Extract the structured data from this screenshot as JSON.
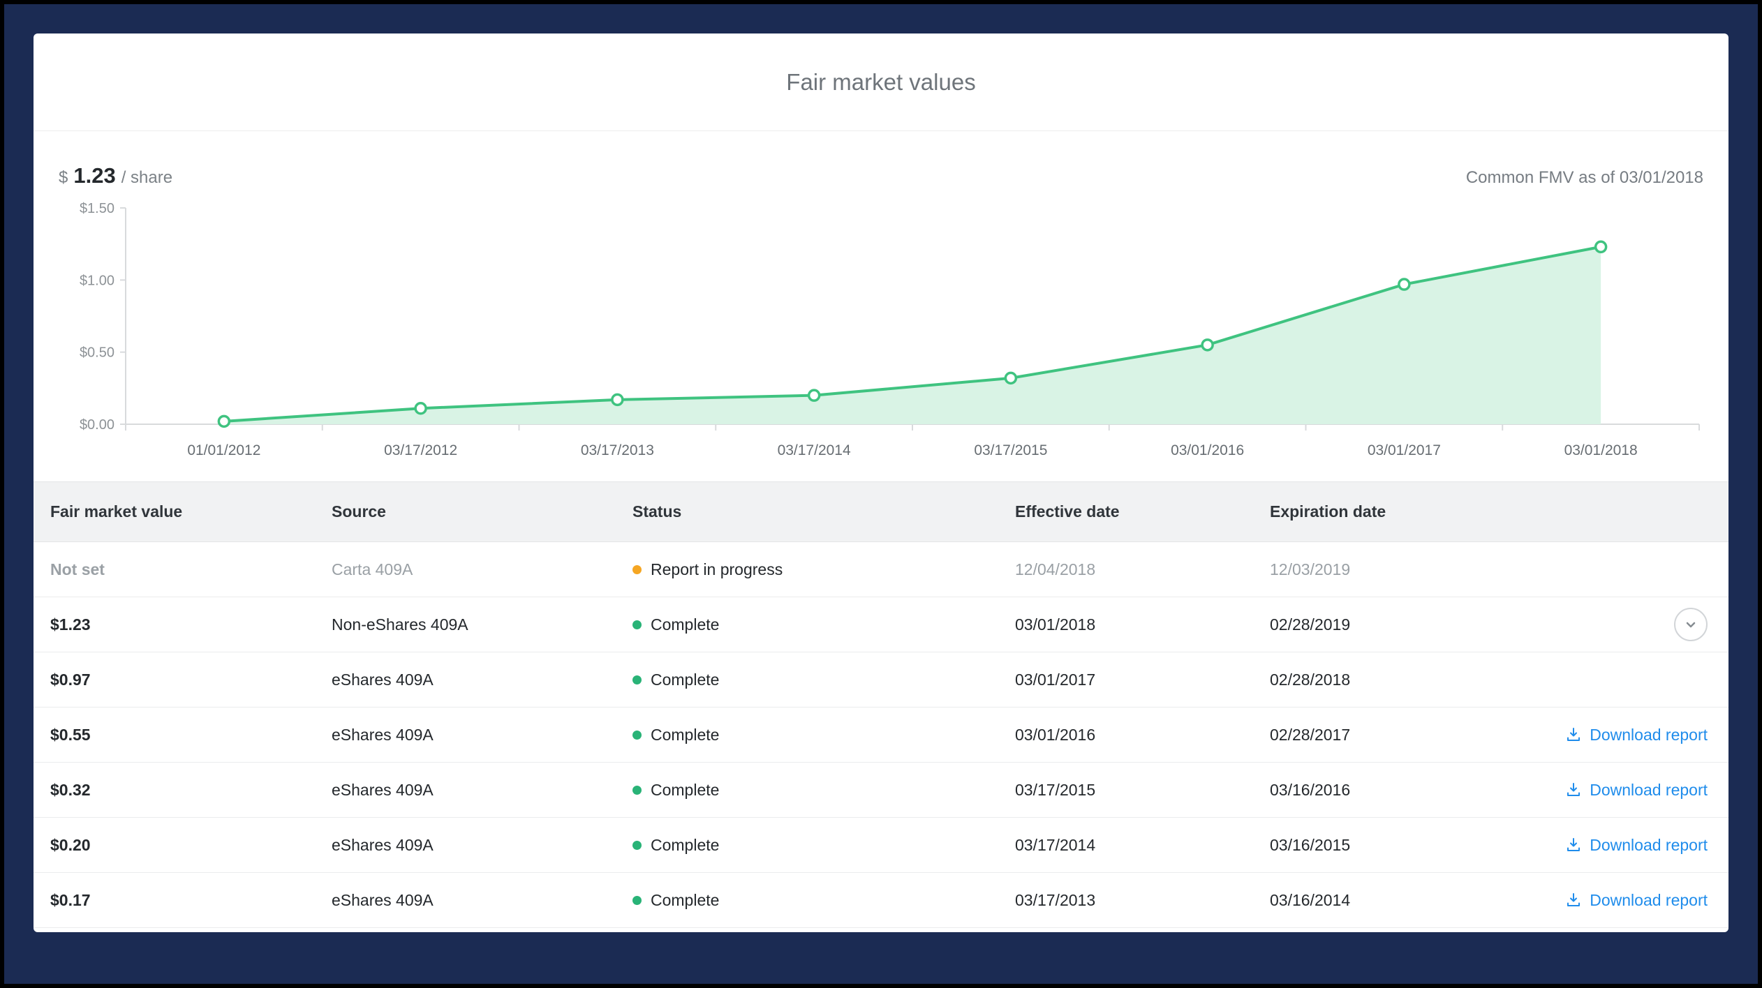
{
  "header": {
    "title": "Fair market values"
  },
  "summary": {
    "currency": "$",
    "value": "1.23",
    "suffix": "/ share",
    "note": "Common FMV as of 03/01/2018"
  },
  "chart_data": {
    "type": "area",
    "x": [
      "01/01/2012",
      "03/17/2012",
      "03/17/2013",
      "03/17/2014",
      "03/17/2015",
      "03/01/2016",
      "03/01/2017",
      "03/01/2018"
    ],
    "values": [
      0.02,
      0.11,
      0.17,
      0.2,
      0.32,
      0.55,
      0.97,
      1.23
    ],
    "ylim": [
      0,
      1.5
    ],
    "yticks": [
      0,
      0.5,
      1.0,
      1.5
    ],
    "ytick_labels": [
      "$0.00",
      "$0.50",
      "$1.00",
      "$1.50"
    ],
    "title": "",
    "xlabel": "",
    "ylabel": "",
    "grid": false,
    "legend": "none",
    "line_color": "#3fc380",
    "fill_color": "#d9f3e5",
    "axis_color": "#d8dadc"
  },
  "table": {
    "columns": [
      "Fair market value",
      "Source",
      "Status",
      "Effective date",
      "Expiration date"
    ],
    "download_label": "Download report",
    "status_colors": {
      "complete": "#29b377",
      "in_progress": "#f5a623"
    },
    "rows": [
      {
        "fmv": "Not set",
        "source": "Carta 409A",
        "status": "Report in progress",
        "status_color": "#f5a623",
        "effective": "12/04/2018",
        "expiration": "12/03/2019",
        "muted": true,
        "action": "none"
      },
      {
        "fmv": "$1.23",
        "source": "Non-eShares 409A",
        "status": "Complete",
        "status_color": "#29b377",
        "effective": "03/01/2018",
        "expiration": "02/28/2019",
        "muted": false,
        "action": "expand"
      },
      {
        "fmv": "$0.97",
        "source": "eShares 409A",
        "status": "Complete",
        "status_color": "#29b377",
        "effective": "03/01/2017",
        "expiration": "02/28/2018",
        "muted": false,
        "action": "none"
      },
      {
        "fmv": "$0.55",
        "source": "eShares 409A",
        "status": "Complete",
        "status_color": "#29b377",
        "effective": "03/01/2016",
        "expiration": "02/28/2017",
        "muted": false,
        "action": "download"
      },
      {
        "fmv": "$0.32",
        "source": "eShares 409A",
        "status": "Complete",
        "status_color": "#29b377",
        "effective": "03/17/2015",
        "expiration": "03/16/2016",
        "muted": false,
        "action": "download"
      },
      {
        "fmv": "$0.20",
        "source": "eShares 409A",
        "status": "Complete",
        "status_color": "#29b377",
        "effective": "03/17/2014",
        "expiration": "03/16/2015",
        "muted": false,
        "action": "download"
      },
      {
        "fmv": "$0.17",
        "source": "eShares 409A",
        "status": "Complete",
        "status_color": "#29b377",
        "effective": "03/17/2013",
        "expiration": "03/16/2014",
        "muted": false,
        "action": "download"
      }
    ]
  }
}
